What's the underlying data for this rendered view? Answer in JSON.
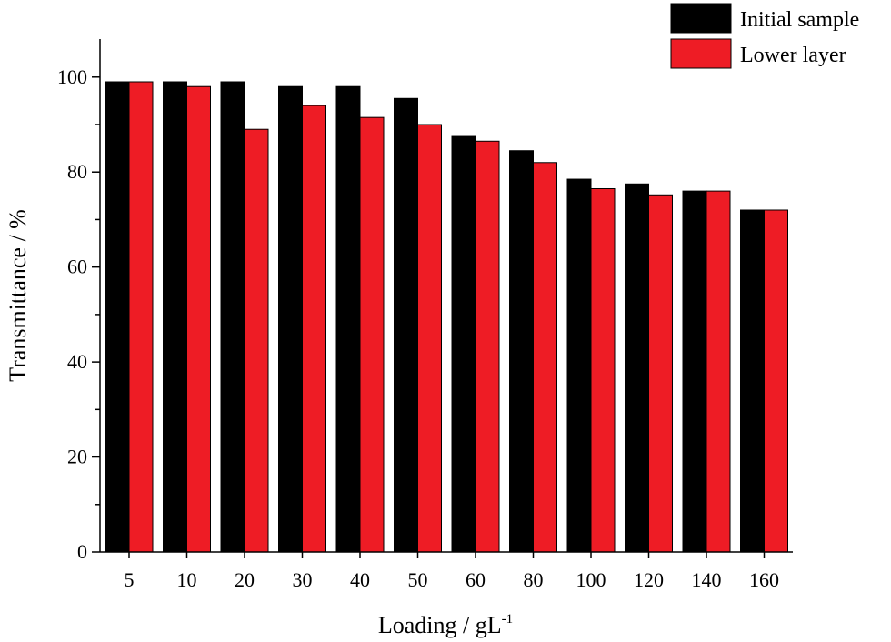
{
  "chart_data": {
    "type": "bar",
    "title": "",
    "xlabel": "Loading / gL",
    "xlabel_superscript": "-1",
    "ylabel": "Transmittance / %",
    "ylim": [
      0,
      108
    ],
    "yticks": [
      0,
      20,
      40,
      60,
      80,
      100
    ],
    "categories": [
      "5",
      "10",
      "20",
      "30",
      "40",
      "50",
      "60",
      "80",
      "100",
      "120",
      "140",
      "160"
    ],
    "series": [
      {
        "name": "Initial sample",
        "color": "#000000",
        "values": [
          99,
          99,
          99,
          98,
          98,
          95.5,
          87.5,
          84.5,
          78.5,
          77.5,
          76,
          72
        ]
      },
      {
        "name": "Lower layer",
        "color": "#ee1c25",
        "values": [
          99,
          98,
          89,
          94,
          91.5,
          90,
          86.5,
          82,
          76.5,
          75.2,
          76,
          72
        ]
      }
    ],
    "legend_position": "top-right",
    "grid": false
  }
}
